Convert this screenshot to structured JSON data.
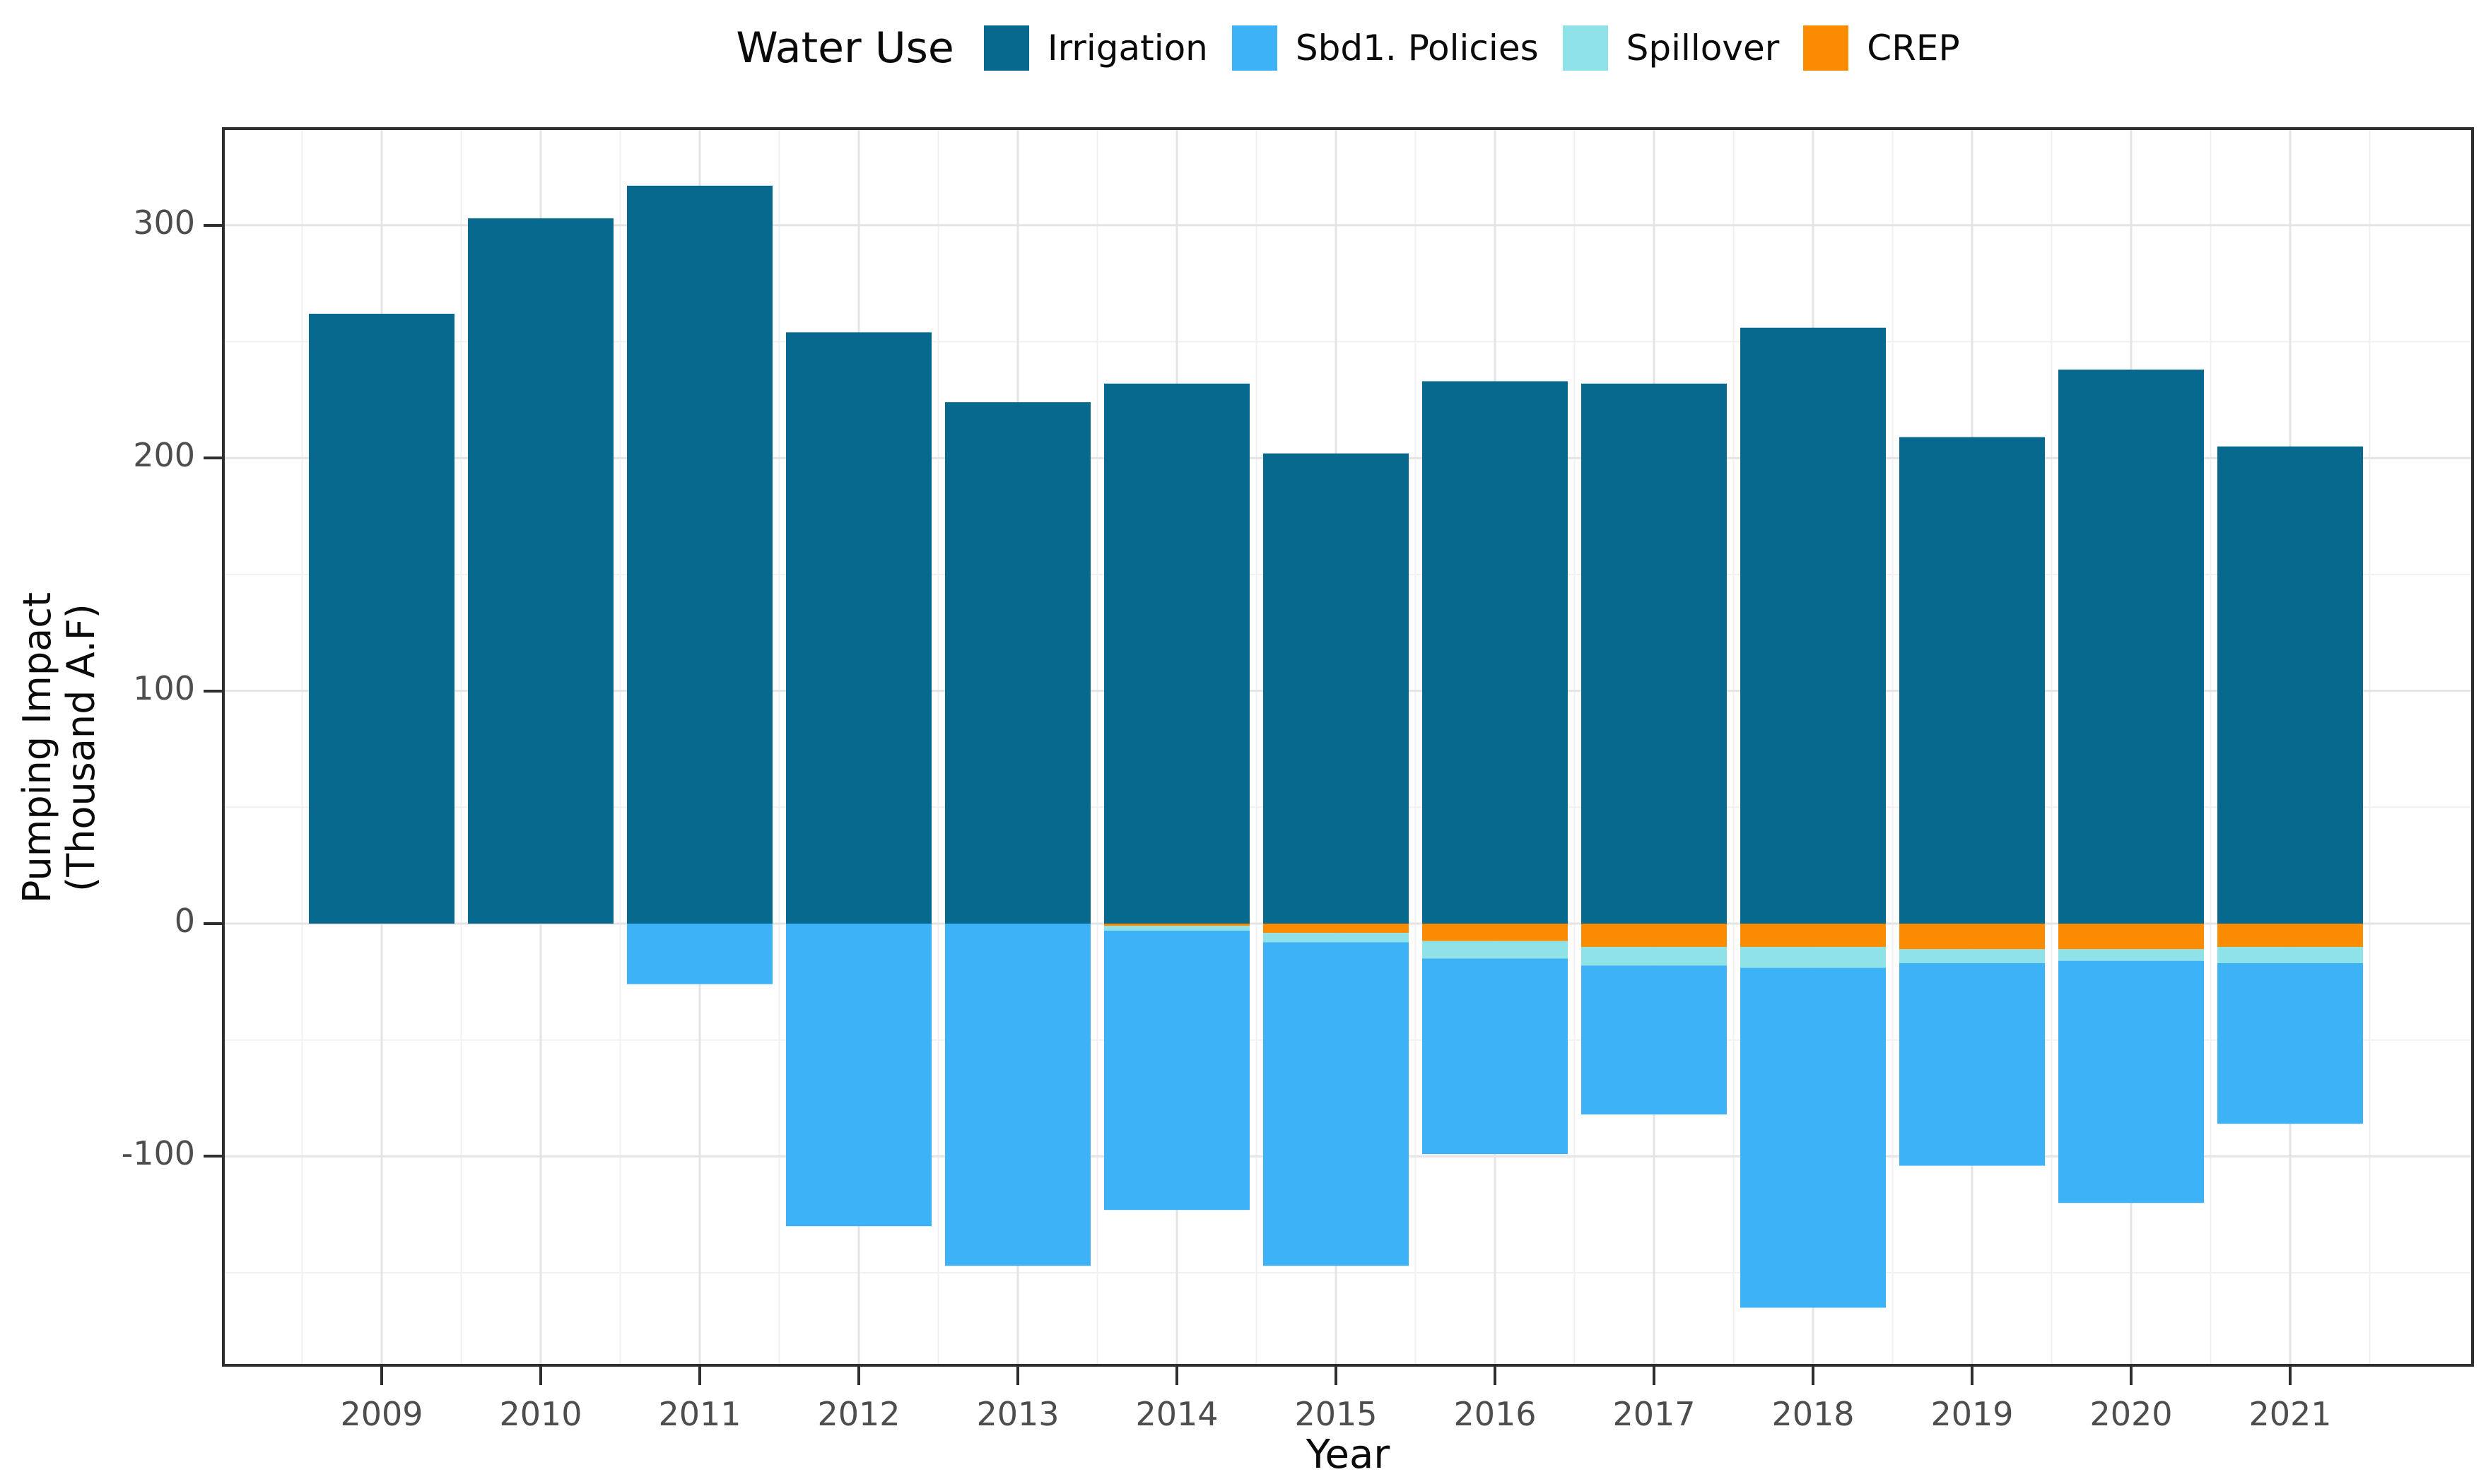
{
  "legend": {
    "title": "Water Use",
    "items": [
      {
        "label": "Irrigation",
        "color": "#06698D"
      },
      {
        "label": "Sbd1. Policies",
        "color": "#3DB2F6"
      },
      {
        "label": "Spillover",
        "color": "#8FE2E8"
      },
      {
        "label": "CREP",
        "color": "#FB8B00"
      }
    ]
  },
  "axes": {
    "x": {
      "title": "Year"
    },
    "y": {
      "title": "Pumping Impact\n(Thousand A.F)",
      "ticks": [
        300,
        200,
        100,
        0,
        -100
      ],
      "minor_ticks": [
        250,
        150,
        50,
        -50,
        -150
      ]
    }
  },
  "chart_data": {
    "type": "bar",
    "stacked": true,
    "orientation": "vertical",
    "title": "",
    "xlabel": "Year",
    "ylabel": "Pumping Impact (Thousand A.F)",
    "ylim": [
      -189,
      341
    ],
    "grid": true,
    "legend_position": "top",
    "categories": [
      2009,
      2010,
      2011,
      2012,
      2013,
      2014,
      2015,
      2016,
      2017,
      2018,
      2019,
      2020,
      2021
    ],
    "series": [
      {
        "name": "Irrigation",
        "color": "#06698D",
        "values": [
          262,
          303,
          317,
          254,
          224,
          232,
          202,
          233,
          232,
          256,
          209,
          238,
          205
        ]
      },
      {
        "name": "CREP",
        "color": "#FB8B00",
        "values": [
          0,
          0,
          0,
          0,
          0,
          -1,
          -4,
          -7.5,
          -10,
          -10,
          -11,
          -11,
          -10
        ]
      },
      {
        "name": "Spillover",
        "color": "#8FE2E8",
        "values": [
          0,
          0,
          0,
          0,
          0,
          -2,
          -4,
          -7.5,
          -8,
          -9,
          -6,
          -5,
          -7
        ]
      },
      {
        "name": "Sbd1. Policies",
        "color": "#3DB2F6",
        "values": [
          0,
          0,
          -26,
          -130,
          -147,
          -120,
          -139,
          -84,
          -64,
          -146,
          -87,
          -104,
          -69
        ]
      }
    ]
  }
}
